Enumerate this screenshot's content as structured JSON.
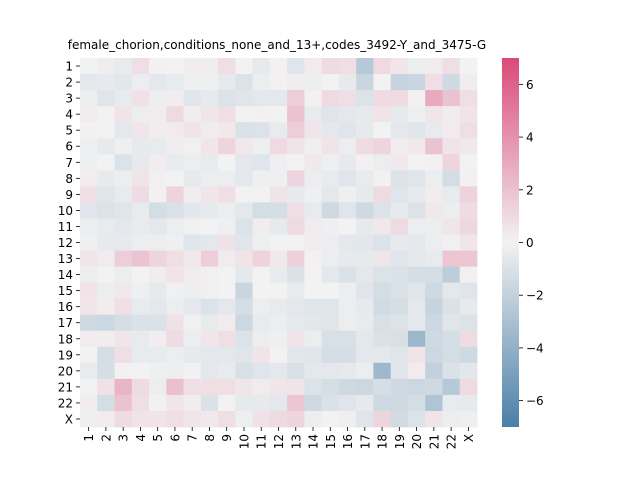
{
  "chart_data": {
    "type": "heatmap",
    "title": "female_chorion,conditions_none_and_13+,codes_3492-Y_and_3475-G",
    "xlabel": "",
    "ylabel": "",
    "categories": [
      "1",
      "2",
      "3",
      "4",
      "5",
      "6",
      "7",
      "8",
      "9",
      "10",
      "11",
      "12",
      "13",
      "14",
      "15",
      "16",
      "17",
      "18",
      "19",
      "20",
      "21",
      "22",
      "X"
    ],
    "colorbar": {
      "min": -7,
      "max": 7,
      "ticks": [
        -6,
        -4,
        -2,
        0,
        2,
        4,
        6
      ],
      "placement": "right"
    },
    "colors": {
      "low": "#4a7fa8",
      "mid": "#f2f2f2",
      "high": "#db4a78"
    },
    "values": [
      [
        0.0,
        0.2,
        -0.4,
        0.8,
        0.1,
        0.0,
        0.2,
        0.2,
        0.8,
        0.0,
        -0.5,
        0.1,
        -0.8,
        0.3,
        0.9,
        0.8,
        -2.5,
        1.0,
        0.5,
        -0.3,
        0.3,
        0.8,
        0.0
      ],
      [
        -0.6,
        -0.5,
        -0.7,
        -0.3,
        -0.6,
        -0.4,
        -0.2,
        -0.2,
        -0.5,
        -0.9,
        -0.3,
        0.1,
        0.2,
        -0.3,
        0.0,
        -0.5,
        -1.7,
        0.0,
        -1.8,
        -1.7,
        0.8,
        -1.5,
        0.2
      ],
      [
        -0.3,
        -0.8,
        -0.4,
        0.7,
        -0.3,
        0.2,
        -0.8,
        -0.5,
        -0.9,
        -0.8,
        -0.6,
        -0.6,
        1.5,
        0.1,
        1.0,
        0.8,
        -0.9,
        1.0,
        0.9,
        0.1,
        3.0,
        2.0,
        0.8
      ],
      [
        0.3,
        0.0,
        0.6,
        -0.3,
        0.2,
        1.0,
        0.2,
        0.5,
        0.8,
        0.0,
        0.1,
        0.0,
        2.0,
        -0.4,
        -0.8,
        -0.6,
        -0.5,
        0.6,
        -0.5,
        -0.2,
        0.5,
        0.2,
        0.6
      ],
      [
        0.1,
        0.0,
        -0.6,
        0.5,
        0.2,
        0.3,
        0.6,
        0.3,
        0.4,
        -1.0,
        -0.9,
        -0.4,
        1.5,
        0.5,
        -0.6,
        -0.8,
        -0.5,
        0.0,
        -0.6,
        -0.8,
        -0.4,
        0.3,
        0.8
      ],
      [
        -0.2,
        -0.5,
        -0.2,
        -0.5,
        -0.4,
        0.2,
        -0.1,
        0.5,
        1.2,
        0.4,
        -0.2,
        1.0,
        0.6,
        -0.2,
        0.6,
        -0.3,
        0.9,
        1.2,
        0.2,
        0.4,
        2.0,
        0.6,
        0.4
      ],
      [
        -0.2,
        0.0,
        -0.9,
        -0.5,
        0.2,
        -0.4,
        -0.3,
        -0.4,
        0.0,
        -0.6,
        -0.8,
        -0.2,
        0.0,
        0.4,
        -0.2,
        -0.5,
        0.1,
        -0.3,
        0.4,
        0.0,
        0.1,
        1.2,
        0.0
      ],
      [
        0.2,
        -0.5,
        -0.3,
        0.6,
        -0.1,
        0.0,
        -0.5,
        -0.3,
        -0.3,
        -0.6,
        -0.2,
        -0.2,
        1.2,
        -0.3,
        -0.4,
        -0.8,
        -0.4,
        0.1,
        -0.9,
        -0.8,
        -0.3,
        -1.3,
        0.1
      ],
      [
        0.8,
        -0.8,
        -0.4,
        0.9,
        0.1,
        1.3,
        0.2,
        0.5,
        0.8,
        0.0,
        0.0,
        0.6,
        -0.5,
        -0.2,
        -0.6,
        -0.2,
        -0.5,
        1.0,
        -0.8,
        -0.5,
        0.2,
        -0.4,
        1.3
      ],
      [
        -0.8,
        -0.9,
        -0.8,
        -0.4,
        -1.3,
        -1.0,
        -0.7,
        -0.5,
        -0.3,
        -0.6,
        -1.3,
        -1.2,
        0.8,
        -0.4,
        -1.5,
        -0.8,
        -1.5,
        -0.9,
        -0.5,
        -0.9,
        0.4,
        -0.3,
        0.9
      ],
      [
        -0.3,
        -0.4,
        -0.6,
        -0.4,
        -0.6,
        -0.3,
        -0.1,
        0.0,
        -0.2,
        -0.9,
        0.2,
        -0.5,
        1.0,
        0.3,
        -0.2,
        0.0,
        -0.5,
        0.4,
        1.0,
        -0.3,
        -0.3,
        0.5,
        1.1
      ],
      [
        -0.2,
        -0.5,
        -0.5,
        -0.3,
        -0.3,
        -0.2,
        -0.8,
        -0.6,
        0.7,
        -0.8,
        -0.2,
        0.0,
        0.0,
        0.3,
        -0.3,
        -0.6,
        -0.7,
        -0.9,
        -0.5,
        -0.6,
        -0.3,
        -0.1,
        0.5
      ],
      [
        0.5,
        0.3,
        1.5,
        1.9,
        1.2,
        0.8,
        0.4,
        1.5,
        0.3,
        0.6,
        1.3,
        0.4,
        1.4,
        0.1,
        -0.3,
        -0.5,
        -0.5,
        0.5,
        -0.8,
        -0.6,
        -0.4,
        1.8,
        1.8
      ],
      [
        -0.3,
        0.0,
        -0.3,
        0.0,
        0.2,
        0.6,
        0.3,
        -0.1,
        0.0,
        -0.6,
        0.0,
        -0.4,
        -1.0,
        0.0,
        -0.6,
        -1.0,
        -0.6,
        -0.9,
        -1.0,
        -1.2,
        -1.2,
        -2.2,
        -0.1
      ],
      [
        0.6,
        -0.3,
        0.4,
        -0.2,
        -0.5,
        -0.1,
        -0.3,
        -0.1,
        0.0,
        -1.7,
        0.0,
        0.0,
        -0.4,
        0.0,
        0.0,
        -0.3,
        -0.8,
        -1.3,
        -1.0,
        -0.8,
        -1.5,
        -0.6,
        -0.8
      ],
      [
        0.5,
        0.2,
        0.8,
        -0.4,
        -0.6,
        -0.3,
        -0.6,
        -0.9,
        -0.6,
        -1.2,
        -0.3,
        -0.4,
        -0.6,
        -0.8,
        -0.8,
        -0.3,
        -0.5,
        -1.4,
        -1.2,
        -0.6,
        -1.8,
        -1.0,
        -0.5
      ],
      [
        -1.5,
        -1.6,
        -1.2,
        -1.0,
        -1.0,
        0.7,
        -0.1,
        -0.4,
        0.3,
        -1.6,
        -0.4,
        -0.3,
        -0.5,
        -0.7,
        -0.8,
        -0.3,
        -0.4,
        -1.1,
        -0.9,
        -0.6,
        -1.6,
        -0.8,
        -0.9
      ],
      [
        0.3,
        0.2,
        0.5,
        -0.4,
        0.2,
        0.9,
        -0.3,
        0.5,
        0.8,
        -0.9,
        -0.3,
        -0.2,
        0.6,
        -0.3,
        -1.1,
        -1.1,
        -0.6,
        -1.0,
        -1.1,
        -3.6,
        -1.5,
        -1.2,
        0.9
      ],
      [
        0.0,
        -1.2,
        0.8,
        -0.4,
        -0.4,
        -0.3,
        -0.5,
        -0.6,
        -0.6,
        -0.8,
        0.6,
        0.0,
        -0.7,
        -0.8,
        -1.2,
        -1.2,
        -0.6,
        -0.6,
        -0.8,
        0.6,
        -1.6,
        -1.3,
        -1.5
      ],
      [
        -0.4,
        -1.2,
        0.1,
        0.0,
        -0.2,
        -0.3,
        0.1,
        -0.6,
        -0.4,
        -1.1,
        -0.8,
        -0.6,
        -1.1,
        -0.6,
        -0.6,
        -0.5,
        -0.3,
        -3.5,
        -0.8,
        0.3,
        -2.0,
        -1.0,
        -0.7
      ],
      [
        0.0,
        0.7,
        2.6,
        0.9,
        -0.3,
        2.1,
        0.8,
        0.8,
        0.8,
        0.5,
        0.3,
        0.5,
        0.6,
        -0.9,
        -1.2,
        -1.5,
        -1.6,
        -1.2,
        -1.5,
        -1.6,
        -1.5,
        -2.5,
        1.0
      ],
      [
        0.2,
        -1.3,
        2.0,
        0.8,
        0.1,
        0.5,
        0.2,
        -1.0,
        0.0,
        -0.5,
        -0.5,
        -0.6,
        1.8,
        -1.5,
        -1.0,
        -0.8,
        -0.5,
        -1.5,
        -1.5,
        -1.3,
        -2.8,
        -0.4,
        -0.5
      ],
      [
        -0.2,
        0.3,
        0.9,
        0.6,
        0.6,
        0.8,
        0.5,
        0.4,
        0.8,
        -0.2,
        0.7,
        1.0,
        1.2,
        -0.3,
        0.0,
        -0.2,
        -0.8,
        1.2,
        -1.4,
        -0.9,
        0.6,
        -0.3,
        -0.2
      ]
    ]
  }
}
